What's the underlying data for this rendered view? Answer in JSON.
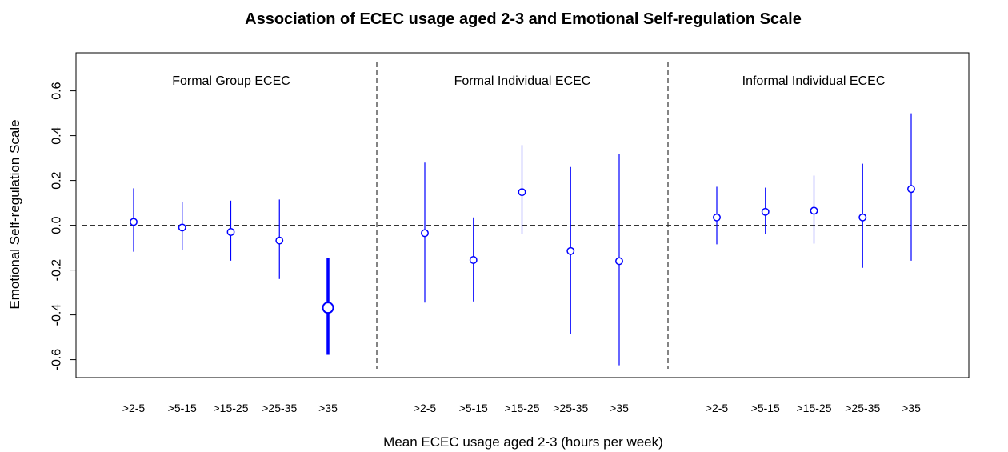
{
  "chart_data": {
    "type": "scatter",
    "title": "Association of ECEC usage aged 2-3 and Emotional Self-regulation Scale",
    "xlabel": "Mean ECEC usage aged 2-3 (hours per week)",
    "ylabel": "Emotional Self-regulation Scale",
    "ylim": [
      -0.68,
      0.77
    ],
    "yticks": [
      "-0.6",
      "-0.4",
      "-0.2",
      "0.0",
      "0.2",
      "0.4",
      "0.6"
    ],
    "ytick_values": [
      -0.6,
      -0.4,
      -0.2,
      0.0,
      0.2,
      0.4,
      0.6
    ],
    "reference_line": 0.0,
    "marker_color": "#0000ff",
    "reference_color": "#333333",
    "groups": [
      {
        "label": "Formal Group ECEC",
        "categories": [
          ">2-5",
          ">5-15",
          ">15-25",
          ">25-35",
          ">35"
        ],
        "estimate": [
          0.015,
          -0.01,
          -0.03,
          -0.068,
          -0.368
        ],
        "lower": [
          -0.118,
          -0.112,
          -0.158,
          -0.24,
          -0.578
        ],
        "upper": [
          0.165,
          0.105,
          0.11,
          0.115,
          -0.148
        ],
        "highlight": [
          false,
          false,
          false,
          false,
          true
        ]
      },
      {
        "label": "Formal Individual ECEC",
        "categories": [
          ">2-5",
          ">5-15",
          ">15-25",
          ">25-35",
          ">35"
        ],
        "estimate": [
          -0.035,
          -0.155,
          0.148,
          -0.115,
          -0.16
        ],
        "lower": [
          -0.345,
          -0.34,
          -0.04,
          -0.485,
          -0.625
        ],
        "upper": [
          0.28,
          0.035,
          0.358,
          0.26,
          0.318
        ],
        "highlight": [
          false,
          false,
          false,
          false,
          false
        ]
      },
      {
        "label": "Informal Individual ECEC",
        "categories": [
          ">2-5",
          ">5-15",
          ">15-25",
          ">25-35",
          ">35"
        ],
        "estimate": [
          0.035,
          0.06,
          0.065,
          0.035,
          0.162
        ],
        "lower": [
          -0.085,
          -0.038,
          -0.082,
          -0.19,
          -0.158
        ],
        "upper": [
          0.172,
          0.168,
          0.222,
          0.275,
          0.5
        ],
        "highlight": [
          false,
          false,
          false,
          false,
          false
        ]
      }
    ]
  }
}
